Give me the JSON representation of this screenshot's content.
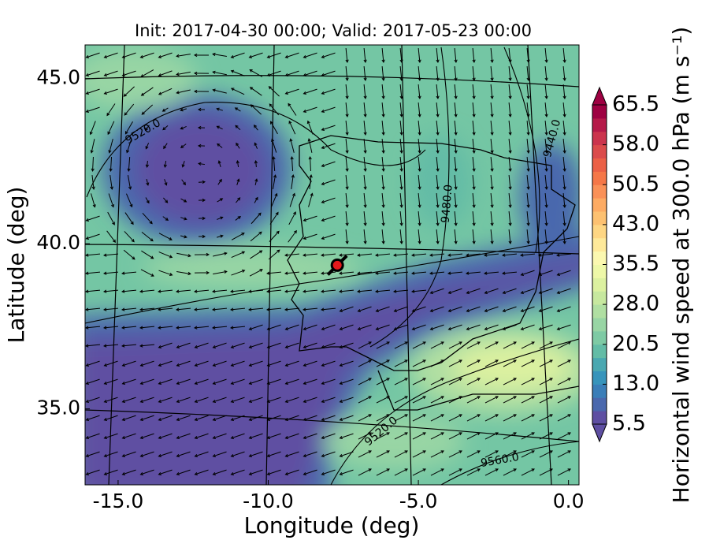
{
  "chart_data": {
    "type": "map",
    "title": "Init: 2017-04-30 00:00; Valid: 2017-05-23 00:00",
    "x_label": "Longitude (deg)",
    "y_label": "Latitude (deg)",
    "xlim": [
      -16.1,
      0.35
    ],
    "ylim": [
      32.7,
      46.02
    ],
    "xticks": [
      {
        "value": -15,
        "label": "-15.0"
      },
      {
        "value": -10,
        "label": "-10.0"
      },
      {
        "value": -5,
        "label": "-5.0"
      },
      {
        "value": 0,
        "label": "0.0"
      }
    ],
    "yticks": [
      {
        "value": 35,
        "label": "35.0"
      },
      {
        "value": 40,
        "label": "40.0"
      },
      {
        "value": 45,
        "label": "45.0"
      }
    ],
    "point": {
      "lon": -7.7,
      "lat": 39.35,
      "color": "#e41a1c"
    },
    "contour_labels": [
      "9520.0",
      "9440.0",
      "9480.0",
      "9520.0",
      "9560.0"
    ],
    "colorbar": {
      "label": "Horizontal wind speed at 300.0 hPa (m s⁻¹)",
      "clim": [
        5.5,
        65.5
      ],
      "ticks": [
        5.5,
        {
          "value": 13,
          "label": "13.0"
        },
        20.5,
        {
          "value": 28,
          "label": "28.0"
        },
        35.5,
        {
          "value": 43,
          "label": "43.0"
        },
        50.5,
        {
          "value": 58,
          "label": "58.0"
        },
        65.5
      ],
      "colors": [
        "#5e4fa2",
        "#4a68ad",
        "#3a7eb8",
        "#3794bb",
        "#4aa8b1",
        "#63bca6",
        "#7ecaa4",
        "#98d5a4",
        "#b0dfa2",
        "#c7e89f",
        "#dcf1a0",
        "#eef8a8",
        "#fbf8b0",
        "#fee99a",
        "#fed683",
        "#fdc171",
        "#fdab63",
        "#fa9158",
        "#f57748",
        "#eb6046",
        "#db4b4b",
        "#cb344d",
        "#b51a49",
        "#9e0142"
      ]
    }
  }
}
